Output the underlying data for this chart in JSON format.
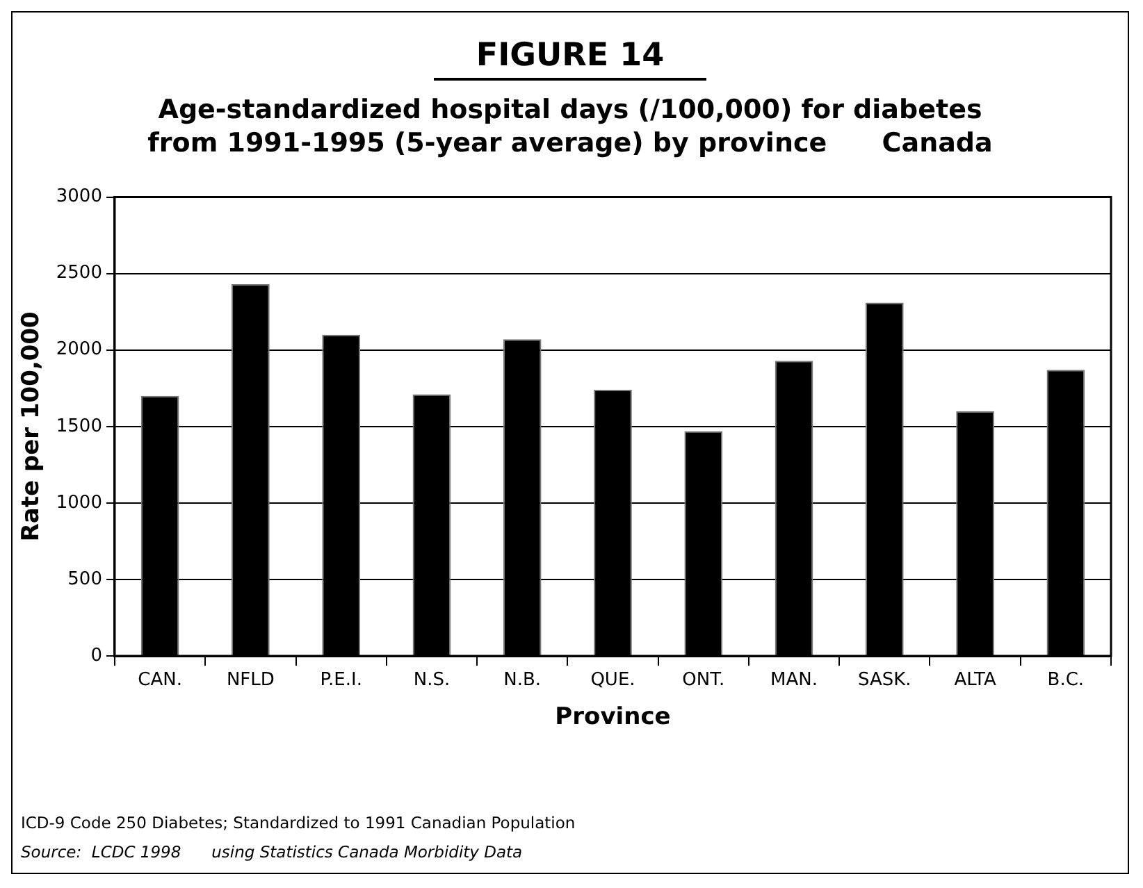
{
  "chart_data": {
    "type": "bar",
    "title": "FIGURE 14",
    "subtitle": "Age-standardized hospital days (/100,000) for diabetes from 1991-1995 (5-year average) by province      Canada",
    "xlabel": "Province",
    "ylabel": "Rate per 100,000",
    "categories": [
      "CAN.",
      "NFLD",
      "P.E.I.",
      "N.S.",
      "N.B.",
      "QUE.",
      "ONT.",
      "MAN.",
      "SASK.",
      "ALTA",
      "B.C."
    ],
    "values": [
      1700,
      2430,
      2100,
      1710,
      2070,
      1740,
      1470,
      1930,
      2310,
      1600,
      1870
    ],
    "color": "#000000",
    "ylim": [
      0,
      3000
    ],
    "yticks": [
      0,
      500,
      1000,
      1500,
      2000,
      2500,
      3000
    ],
    "grid": "y",
    "annotations": [
      "ICD-9 Code 250 Diabetes; Standardized to 1991 Canadian Population",
      "Source:  LCDC 1998      using Statistics Canada Morbidity Data"
    ]
  }
}
